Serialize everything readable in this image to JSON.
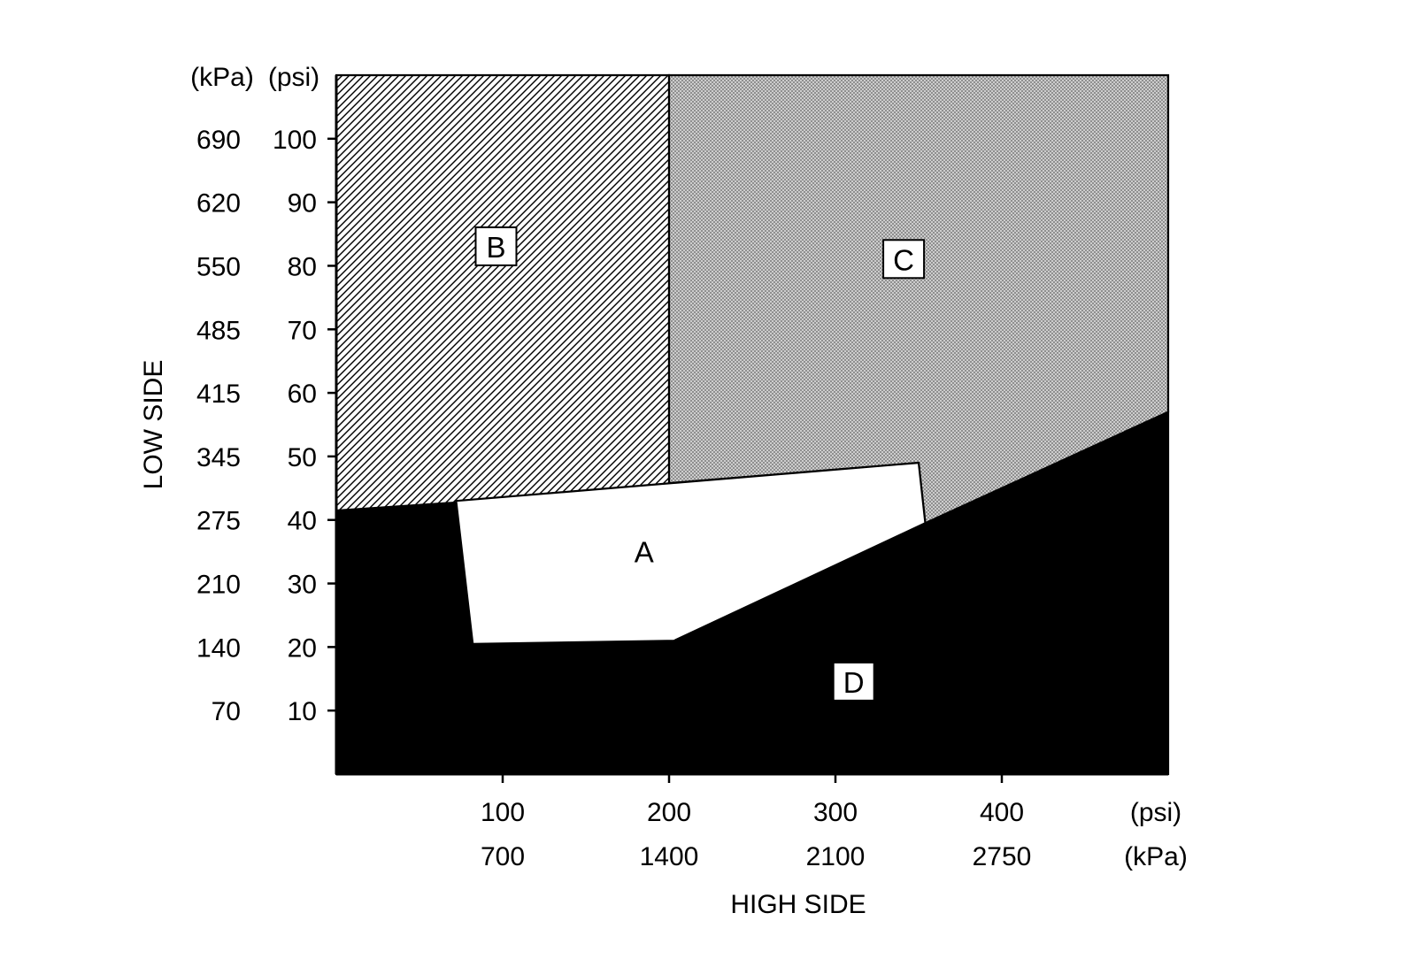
{
  "chart_data": {
    "type": "area",
    "title": "",
    "colors": {
      "background": "#ffffff",
      "region_d_fill": "#000000",
      "region_a_fill": "#ffffff",
      "hatch_line": "#000000",
      "c_texture_light": "#cdcdcd",
      "c_texture_dark": "#8f8f8f"
    },
    "x_axis": {
      "label": "HIGH SIDE",
      "range_psi": [
        0,
        500
      ],
      "unit_rows": [
        {
          "unit": "(psi)",
          "ticks": [
            100,
            200,
            300,
            400
          ]
        },
        {
          "unit": "(kPa)",
          "ticks": [
            700,
            1400,
            2100,
            2750
          ]
        }
      ]
    },
    "y_axis": {
      "label": "LOW SIDE",
      "range_psi": [
        0,
        110
      ],
      "unit_columns": [
        {
          "unit": "(kPa)",
          "ticks": [
            690,
            620,
            550,
            485,
            415,
            345,
            275,
            210,
            140,
            70
          ]
        },
        {
          "unit": "(psi)",
          "ticks": [
            100,
            90,
            80,
            70,
            60,
            50,
            40,
            30,
            20,
            10
          ]
        }
      ]
    },
    "regions": [
      {
        "id": "B",
        "label": "B",
        "fill": "pattern:hatch",
        "label_boxed": true,
        "label_pos_psi": [
          96,
          83
        ],
        "points_psi": [
          [
            0,
            110
          ],
          [
            200,
            110
          ],
          [
            200,
            45
          ],
          [
            0,
            41.5
          ]
        ]
      },
      {
        "id": "C",
        "label": "C",
        "fill": "pattern:dots",
        "label_boxed": true,
        "label_pos_psi": [
          341,
          81
        ],
        "points_psi": [
          [
            200,
            110
          ],
          [
            500,
            110
          ],
          [
            500,
            57
          ],
          [
            354,
            39.5
          ],
          [
            350,
            49
          ],
          [
            200,
            45.8
          ]
        ]
      },
      {
        "id": "D",
        "label": "D",
        "fill": "#000000",
        "label_boxed": true,
        "label_pos_psi": [
          311,
          14.5
        ],
        "points_psi": [
          [
            0,
            0
          ],
          [
            0,
            41.5
          ],
          [
            72,
            43
          ],
          [
            82,
            20.5
          ],
          [
            203,
            21
          ],
          [
            500,
            57
          ],
          [
            500,
            0
          ]
        ]
      },
      {
        "id": "A",
        "label": "A",
        "fill": "#ffffff",
        "label_boxed": false,
        "label_pos_psi": [
          185,
          35
        ],
        "points_psi": [
          [
            72,
            43
          ],
          [
            350,
            49
          ],
          [
            354,
            39.5
          ],
          [
            203,
            21
          ],
          [
            82,
            20.5
          ]
        ]
      }
    ]
  }
}
